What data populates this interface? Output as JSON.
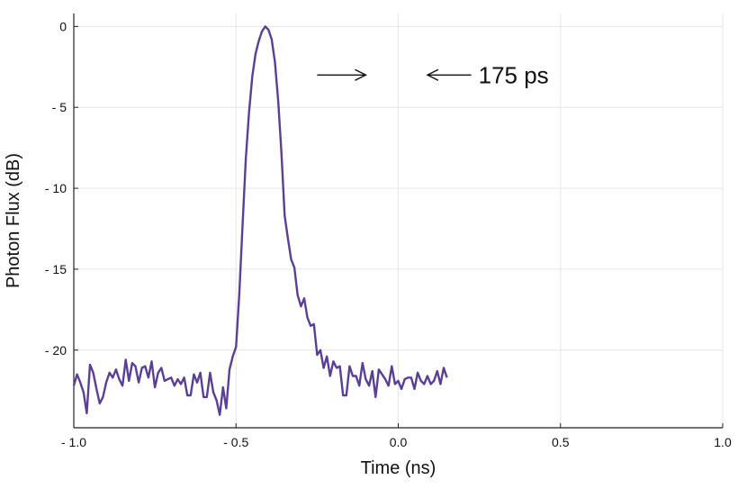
{
  "chart_data": {
    "type": "line",
    "xlabel": "Time (ns)",
    "ylabel": "Photon Flux (dB)",
    "xlim": [
      -1.0,
      1.0
    ],
    "ylim": [
      -24.8,
      0.8
    ],
    "grid": true,
    "x_ticks": [
      -1.0,
      -0.5,
      0.0,
      0.5,
      1.0
    ],
    "x_tick_labels": [
      "- 1.0",
      "- 0.5",
      "0.0",
      "0.5",
      "1.0"
    ],
    "y_ticks": [
      0,
      -5,
      -10,
      -15,
      -20
    ],
    "y_tick_labels": [
      "0",
      "- 5",
      "- 10",
      "- 15",
      "- 20"
    ],
    "series": [
      {
        "color": "#5b3f96",
        "points": [
          [
            -1.0,
            -22.2
          ],
          [
            -0.99,
            -21.5
          ],
          [
            -0.98,
            -22.0
          ],
          [
            -0.97,
            -22.6
          ],
          [
            -0.96,
            -23.9
          ],
          [
            -0.95,
            -20.9
          ],
          [
            -0.94,
            -21.4
          ],
          [
            -0.93,
            -22.4
          ],
          [
            -0.92,
            -23.3
          ],
          [
            -0.91,
            -22.9
          ],
          [
            -0.9,
            -22.0
          ],
          [
            -0.89,
            -21.4
          ],
          [
            -0.88,
            -21.7
          ],
          [
            -0.87,
            -21.2
          ],
          [
            -0.86,
            -21.8
          ],
          [
            -0.85,
            -22.2
          ],
          [
            -0.84,
            -20.6
          ],
          [
            -0.83,
            -21.9
          ],
          [
            -0.82,
            -20.8
          ],
          [
            -0.81,
            -21.0
          ],
          [
            -0.8,
            -22.0
          ],
          [
            -0.79,
            -21.1
          ],
          [
            -0.78,
            -21.0
          ],
          [
            -0.77,
            -21.7
          ],
          [
            -0.76,
            -20.7
          ],
          [
            -0.75,
            -22.3
          ],
          [
            -0.74,
            -21.4
          ],
          [
            -0.73,
            -21.1
          ],
          [
            -0.72,
            -21.9
          ],
          [
            -0.71,
            -21.8
          ],
          [
            -0.7,
            -21.7
          ],
          [
            -0.69,
            -22.2
          ],
          [
            -0.68,
            -21.8
          ],
          [
            -0.67,
            -22.1
          ],
          [
            -0.66,
            -21.7
          ],
          [
            -0.65,
            -22.8
          ],
          [
            -0.64,
            -22.8
          ],
          [
            -0.63,
            -21.5
          ],
          [
            -0.62,
            -22.0
          ],
          [
            -0.61,
            -21.4
          ],
          [
            -0.6,
            -22.9
          ],
          [
            -0.59,
            -22.9
          ],
          [
            -0.58,
            -21.4
          ],
          [
            -0.57,
            -22.6
          ],
          [
            -0.56,
            -23.1
          ],
          [
            -0.55,
            -24.0
          ],
          [
            -0.54,
            -22.3
          ],
          [
            -0.53,
            -23.6
          ],
          [
            -0.52,
            -21.2
          ],
          [
            -0.51,
            -20.4
          ],
          [
            -0.5,
            -19.8
          ],
          [
            -0.49,
            -16.5
          ],
          [
            -0.48,
            -12.3
          ],
          [
            -0.47,
            -8.2
          ],
          [
            -0.46,
            -5.3
          ],
          [
            -0.45,
            -3.1
          ],
          [
            -0.44,
            -1.7
          ],
          [
            -0.43,
            -0.9
          ],
          [
            -0.42,
            -0.3
          ],
          [
            -0.41,
            0.0
          ],
          [
            -0.4,
            -0.2
          ],
          [
            -0.39,
            -0.8
          ],
          [
            -0.38,
            -2.2
          ],
          [
            -0.37,
            -4.6
          ],
          [
            -0.36,
            -7.8
          ],
          [
            -0.35,
            -11.7
          ],
          [
            -0.34,
            -13.1
          ],
          [
            -0.33,
            -14.4
          ],
          [
            -0.32,
            -14.9
          ],
          [
            -0.31,
            -16.6
          ],
          [
            -0.3,
            -17.3
          ],
          [
            -0.29,
            -16.8
          ],
          [
            -0.28,
            -18.0
          ],
          [
            -0.27,
            -18.5
          ],
          [
            -0.26,
            -18.4
          ],
          [
            -0.25,
            -20.3
          ],
          [
            -0.24,
            -20.0
          ],
          [
            -0.23,
            -21.1
          ],
          [
            -0.22,
            -20.4
          ],
          [
            -0.21,
            -21.6
          ],
          [
            -0.2,
            -20.7
          ],
          [
            -0.19,
            -21.1
          ],
          [
            -0.18,
            -21.0
          ],
          [
            -0.17,
            -22.8
          ],
          [
            -0.16,
            -22.8
          ],
          [
            -0.15,
            -21.0
          ],
          [
            -0.14,
            -21.6
          ],
          [
            -0.13,
            -21.6
          ],
          [
            -0.12,
            -22.2
          ],
          [
            -0.11,
            -20.8
          ],
          [
            -0.1,
            -21.8
          ],
          [
            -0.09,
            -22.2
          ],
          [
            -0.08,
            -21.3
          ],
          [
            -0.07,
            -22.9
          ],
          [
            -0.06,
            -21.2
          ],
          [
            -0.05,
            -21.5
          ],
          [
            -0.04,
            -21.8
          ],
          [
            -0.03,
            -22.2
          ],
          [
            -0.02,
            -21.0
          ],
          [
            -0.01,
            -22.1
          ],
          [
            0.0,
            -21.9
          ],
          [
            0.01,
            -22.4
          ],
          [
            0.02,
            -21.8
          ],
          [
            0.03,
            -21.7
          ],
          [
            0.04,
            -21.7
          ],
          [
            0.05,
            -22.4
          ],
          [
            0.06,
            -21.4
          ],
          [
            0.07,
            -21.9
          ],
          [
            0.08,
            -22.1
          ],
          [
            0.09,
            -21.6
          ],
          [
            0.1,
            -22.1
          ],
          [
            0.11,
            -21.9
          ],
          [
            0.12,
            -21.3
          ],
          [
            0.13,
            -22.1
          ],
          [
            0.14,
            -21.1
          ],
          [
            0.15,
            -21.7
          ]
        ]
      }
    ],
    "annotations": [
      {
        "text": "175 ps",
        "y": -3.0,
        "arrow_left_x": [
          -0.25,
          -0.1
        ],
        "arrow_right_x": [
          0.225,
          0.09
        ]
      }
    ]
  }
}
